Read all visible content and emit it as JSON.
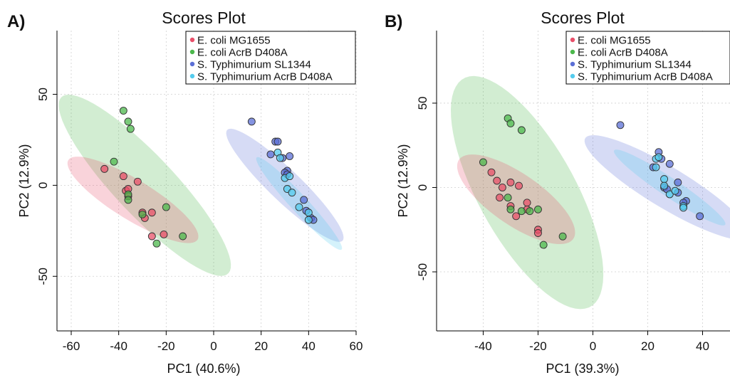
{
  "colors": {
    "E. coli MG1655": "#e8506a",
    "E. coli AcrB D408A": "#4cb84c",
    "S. Typhimurium SL1344": "#5b6fd6",
    "S. Typhimurium AcrB D408A": "#55ccee"
  },
  "chart_data": [
    {
      "panel_label": "A)",
      "type": "scatter",
      "title": "Scores Plot",
      "xlabel": "PC1 (40.6%)",
      "ylabel": "PC2 (12.9%)",
      "xlim": [
        -66,
        60
      ],
      "ylim": [
        -80,
        85
      ],
      "xticks": [
        -60,
        -40,
        -20,
        0,
        20,
        40,
        60
      ],
      "yticks": [
        -50,
        0,
        50
      ],
      "grid": true,
      "legend_position": "top-right",
      "legend": [
        "E. coli MG1655",
        "E. coli AcrB D408A",
        "S. Typhimurium SL1344",
        "S. Typhimurium AcrB D408A"
      ],
      "ellipses": [
        {
          "group": "E. coli AcrB D408A",
          "cx": -29,
          "cy": 0,
          "rx": 60,
          "ry": 14,
          "angle": -55
        },
        {
          "group": "E. coli MG1655",
          "cx": -34,
          "cy": -8,
          "rx": 35,
          "ry": 10,
          "angle": -40
        },
        {
          "group": "S. Typhimurium SL1344",
          "cx": 30,
          "cy": 0,
          "rx": 39,
          "ry": 7.5,
          "angle": -52
        },
        {
          "group": "S. Typhimurium AcrB D408A",
          "cx": 36,
          "cy": -10,
          "rx": 31,
          "ry": 4,
          "angle": -55
        }
      ],
      "series": [
        {
          "name": "E. coli MG1655",
          "points": [
            [
              -46,
              9
            ],
            [
              -38,
              5
            ],
            [
              -37,
              -3
            ],
            [
              -36,
              -2
            ],
            [
              -36,
              -6
            ],
            [
              -32,
              2
            ],
            [
              -30,
              -15
            ],
            [
              -29,
              -18
            ],
            [
              -26,
              -15
            ],
            [
              -26,
              -28
            ],
            [
              -21,
              -27
            ]
          ]
        },
        {
          "name": "E. coli AcrB D408A",
          "points": [
            [
              -42,
              13
            ],
            [
              -38,
              41
            ],
            [
              -36,
              35
            ],
            [
              -35,
              31
            ],
            [
              -36,
              -5
            ],
            [
              -36,
              -8
            ],
            [
              -30,
              -16
            ],
            [
              -20,
              -12
            ],
            [
              -24,
              -32
            ],
            [
              -13,
              -28
            ]
          ]
        },
        {
          "name": "S. Typhimurium SL1344",
          "points": [
            [
              16,
              35
            ],
            [
              26,
              24
            ],
            [
              27,
              24
            ],
            [
              29,
              15
            ],
            [
              24,
              17
            ],
            [
              32,
              16
            ],
            [
              31,
              8
            ],
            [
              30,
              7
            ],
            [
              31,
              6
            ],
            [
              38,
              -8
            ],
            [
              39,
              -14
            ],
            [
              41,
              -18
            ],
            [
              42,
              -19
            ]
          ]
        },
        {
          "name": "S. Typhimurium AcrB D408A",
          "points": [
            [
              27,
              18
            ],
            [
              28,
              15
            ],
            [
              30,
              4
            ],
            [
              32,
              5
            ],
            [
              31,
              -2
            ],
            [
              33,
              -4
            ],
            [
              36,
              -12
            ],
            [
              40,
              -15
            ],
            [
              40,
              -19
            ]
          ]
        }
      ]
    },
    {
      "panel_label": "B)",
      "type": "scatter",
      "title": "Scores Plot",
      "xlabel": "PC1 (39.3%)",
      "ylabel": "PC2 (12.9%)",
      "xlim": [
        -57,
        50
      ],
      "ylim": [
        -85,
        93
      ],
      "xticks": [
        -40,
        -20,
        0,
        20,
        40
      ],
      "yticks": [
        -50,
        0,
        50
      ],
      "grid": true,
      "legend_position": "top-right",
      "legend": [
        "E. coli MG1655",
        "E. coli AcrB D408A",
        "S. Typhimurium SL1344",
        "S. Typhimurium AcrB D408A"
      ],
      "ellipses": [
        {
          "group": "E. coli AcrB D408A",
          "cx": -24,
          "cy": -3,
          "rx": 72,
          "ry": 19,
          "angle": -73
        },
        {
          "group": "E. coli MG1655",
          "cx": -28,
          "cy": -7,
          "rx": 32,
          "ry": 12,
          "angle": -53
        },
        {
          "group": "S. Typhimurium SL1344",
          "cx": 27,
          "cy": 0,
          "rx": 42,
          "ry": 10,
          "angle": -46
        },
        {
          "group": "S. Typhimurium AcrB D408A",
          "cx": 28,
          "cy": 0,
          "rx": 30,
          "ry": 4.5,
          "angle": -48
        }
      ],
      "series": [
        {
          "name": "E. coli MG1655",
          "points": [
            [
              -37,
              9
            ],
            [
              -35,
              4
            ],
            [
              -33,
              0
            ],
            [
              -30,
              3
            ],
            [
              -30,
              -11
            ],
            [
              -28,
              -17
            ],
            [
              -24,
              -9
            ],
            [
              -24,
              -13
            ],
            [
              -20,
              -25
            ],
            [
              -20,
              -27
            ],
            [
              -27,
              1
            ],
            [
              -34,
              -6
            ]
          ]
        },
        {
          "name": "E. coli AcrB D408A",
          "points": [
            [
              -40,
              15
            ],
            [
              -31,
              41
            ],
            [
              -30,
              38
            ],
            [
              -26,
              34
            ],
            [
              -31,
              -6
            ],
            [
              -30,
              -13
            ],
            [
              -26,
              -14
            ],
            [
              -20,
              -13
            ],
            [
              -11,
              -29
            ],
            [
              -18,
              -34
            ],
            [
              -23,
              -14
            ]
          ]
        },
        {
          "name": "S. Typhimurium SL1344",
          "points": [
            [
              10,
              37
            ],
            [
              24,
              21
            ],
            [
              25,
              17
            ],
            [
              22,
              12
            ],
            [
              26,
              0
            ],
            [
              28,
              14
            ],
            [
              31,
              3
            ],
            [
              31,
              -3
            ],
            [
              34,
              -8
            ],
            [
              33,
              -9
            ],
            [
              39,
              -17
            ],
            [
              27,
              -1
            ]
          ]
        },
        {
          "name": "S. Typhimurium AcrB D408A",
          "points": [
            [
              23,
              17
            ],
            [
              24,
              18
            ],
            [
              26,
              5
            ],
            [
              28,
              -4
            ],
            [
              30,
              -2
            ],
            [
              33,
              -11
            ],
            [
              33,
              -12
            ],
            [
              23,
              12
            ],
            [
              26,
              1
            ]
          ]
        }
      ]
    }
  ]
}
